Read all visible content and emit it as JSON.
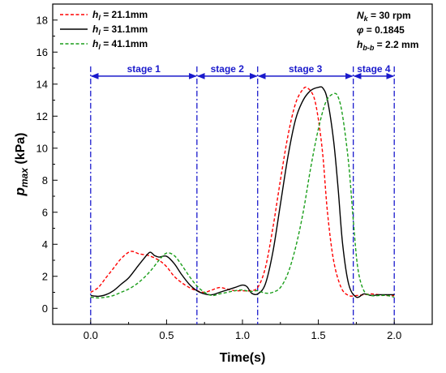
{
  "chart_data": {
    "type": "line",
    "xlabel": "Time(s)",
    "ylabel": {
      "base": "p",
      "sub": "max",
      "unit": " (kPa)"
    },
    "xlim": [
      -0.25,
      2.25
    ],
    "ylim": [
      -1,
      19
    ],
    "xticks": [
      0.0,
      0.5,
      1.0,
      1.5,
      2.0
    ],
    "xtick_labels": [
      "0.0",
      "0.5",
      "1.0",
      "1.5",
      "2.0"
    ],
    "yticks": [
      0,
      2,
      4,
      6,
      8,
      10,
      12,
      14,
      16,
      18
    ],
    "ytick_labels": [
      "0",
      "2",
      "4",
      "6",
      "8",
      "10",
      "12",
      "14",
      "16",
      "18"
    ],
    "grid": false,
    "legend_position": "top-left",
    "parameters": [
      {
        "base": "N",
        "sub": "k",
        "rest": " = 30 rpm"
      },
      {
        "base": "φ",
        "sub": "",
        "rest": " = 0.1845"
      },
      {
        "base": "h",
        "sub": "b-b",
        "rest": " = 2.2 mm"
      }
    ],
    "stage_boundaries": [
      0.0,
      0.7,
      1.1,
      1.73,
      2.0
    ],
    "stage_arrow_y": 14.5,
    "stages": [
      {
        "label": "stage 1",
        "from": 0.0,
        "to": 0.7
      },
      {
        "label": "stage 2",
        "from": 0.7,
        "to": 1.1
      },
      {
        "label": "stage 3",
        "from": 1.1,
        "to": 1.73
      },
      {
        "label": "stage 4",
        "from": 1.73,
        "to": 2.0
      }
    ],
    "series": [
      {
        "name_base": "h",
        "name_sub": "l",
        "name_rest": " = 21.1mm",
        "color": "#ff0000",
        "dash": "dashed",
        "x": [
          0.0,
          0.05,
          0.1,
          0.15,
          0.2,
          0.25,
          0.28,
          0.32,
          0.38,
          0.45,
          0.5,
          0.55,
          0.6,
          0.65,
          0.7,
          0.75,
          0.8,
          0.85,
          0.9,
          0.95,
          1.0,
          1.05,
          1.1,
          1.15,
          1.2,
          1.25,
          1.3,
          1.35,
          1.4,
          1.43,
          1.47,
          1.5,
          1.53,
          1.56,
          1.6,
          1.65,
          1.7,
          1.75,
          1.8,
          1.85,
          1.9,
          1.95,
          2.0
        ],
        "y": [
          1.0,
          1.3,
          1.9,
          2.5,
          3.1,
          3.5,
          3.55,
          3.4,
          3.3,
          3.0,
          2.6,
          2.0,
          1.6,
          1.3,
          1.1,
          1.0,
          1.15,
          1.3,
          1.2,
          1.1,
          1.1,
          1.1,
          1.3,
          2.5,
          5.0,
          8.0,
          10.8,
          12.8,
          13.7,
          13.75,
          13.2,
          11.8,
          9.5,
          6.0,
          3.0,
          1.3,
          0.8,
          0.8,
          0.85,
          0.9,
          0.85,
          0.8,
          0.8
        ]
      },
      {
        "name_base": "h",
        "name_sub": "l",
        "name_rest": " = 31.1mm",
        "color": "#000000",
        "dash": "solid",
        "x": [
          0.0,
          0.05,
          0.1,
          0.15,
          0.2,
          0.25,
          0.3,
          0.35,
          0.39,
          0.42,
          0.45,
          0.5,
          0.55,
          0.6,
          0.65,
          0.7,
          0.75,
          0.8,
          0.85,
          0.9,
          0.95,
          1.0,
          1.03,
          1.06,
          1.1,
          1.15,
          1.2,
          1.25,
          1.3,
          1.35,
          1.4,
          1.45,
          1.5,
          1.53,
          1.56,
          1.6,
          1.63,
          1.66,
          1.7,
          1.75,
          1.8,
          1.85,
          1.9,
          1.95,
          2.0
        ],
        "y": [
          0.8,
          0.75,
          0.85,
          1.1,
          1.5,
          1.9,
          2.5,
          3.1,
          3.5,
          3.3,
          3.2,
          3.25,
          2.8,
          2.1,
          1.5,
          1.1,
          0.9,
          0.85,
          1.0,
          1.15,
          1.3,
          1.45,
          1.35,
          0.95,
          0.9,
          1.5,
          3.5,
          6.5,
          9.5,
          11.8,
          13.0,
          13.6,
          13.8,
          13.75,
          13.0,
          10.5,
          7.5,
          4.0,
          1.5,
          0.7,
          0.9,
          0.8,
          0.85,
          0.85,
          0.85
        ]
      },
      {
        "name_base": "h",
        "name_sub": "l",
        "name_rest": " = 41.1mm",
        "color": "#1a9e1a",
        "dash": "dashed",
        "x": [
          0.0,
          0.05,
          0.1,
          0.15,
          0.2,
          0.25,
          0.3,
          0.35,
          0.4,
          0.45,
          0.5,
          0.55,
          0.6,
          0.65,
          0.7,
          0.75,
          0.8,
          0.85,
          0.9,
          0.95,
          1.0,
          1.05,
          1.1,
          1.15,
          1.2,
          1.25,
          1.3,
          1.35,
          1.4,
          1.45,
          1.5,
          1.55,
          1.6,
          1.63,
          1.66,
          1.7,
          1.73,
          1.76,
          1.8,
          1.85,
          1.9,
          1.95,
          2.0
        ],
        "y": [
          0.7,
          0.65,
          0.7,
          0.8,
          1.0,
          1.2,
          1.5,
          1.9,
          2.4,
          3.0,
          3.45,
          3.3,
          2.7,
          2.0,
          1.4,
          1.0,
          0.8,
          0.9,
          1.0,
          1.1,
          1.15,
          1.05,
          1.1,
          0.95,
          1.0,
          1.3,
          2.2,
          3.8,
          6.0,
          8.8,
          11.2,
          12.9,
          13.4,
          13.2,
          12.0,
          9.0,
          5.5,
          2.5,
          1.1,
          0.8,
          0.8,
          0.8,
          0.7
        ]
      }
    ]
  }
}
